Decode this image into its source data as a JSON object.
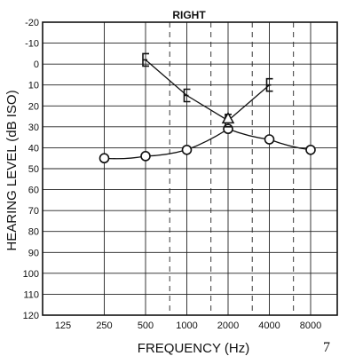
{
  "chart_data": {
    "type": "line",
    "title": "RIGHT",
    "xlabel": "FREQUENCY (Hz)",
    "ylabel": "HEARING LEVEL (dB ISO)",
    "x_scale": "log2",
    "x_ticks": [
      125,
      250,
      500,
      1000,
      2000,
      4000,
      8000
    ],
    "x_tick_labels": [
      "125",
      "250",
      "500",
      "1000",
      "2000",
      "4000",
      "8000"
    ],
    "x_dashed_midlines": [
      750,
      1500,
      3000,
      6000
    ],
    "y_ticks": [
      -20,
      -10,
      0,
      10,
      20,
      30,
      40,
      50,
      60,
      70,
      80,
      90,
      100,
      110,
      120
    ],
    "y_tick_labels": [
      "-20",
      "-10",
      "0",
      "10",
      "20",
      "30",
      "40",
      "50",
      "60",
      "70",
      "80",
      "90",
      "100",
      "110",
      "120"
    ],
    "ylim": [
      -20,
      120
    ],
    "y_inverted": true,
    "grid": true,
    "series": [
      {
        "marker": "circle",
        "x": [
          250,
          500,
          1000,
          2000,
          4000,
          8000
        ],
        "y": [
          45,
          44,
          41,
          31,
          36,
          41
        ]
      },
      {
        "marker": "E",
        "x": [
          500,
          1000,
          2000,
          4000
        ],
        "y": [
          -2,
          15,
          27,
          10
        ]
      },
      {
        "marker": "triangle",
        "x": [
          2000
        ],
        "y": [
          26
        ]
      }
    ]
  },
  "page_number": "7"
}
